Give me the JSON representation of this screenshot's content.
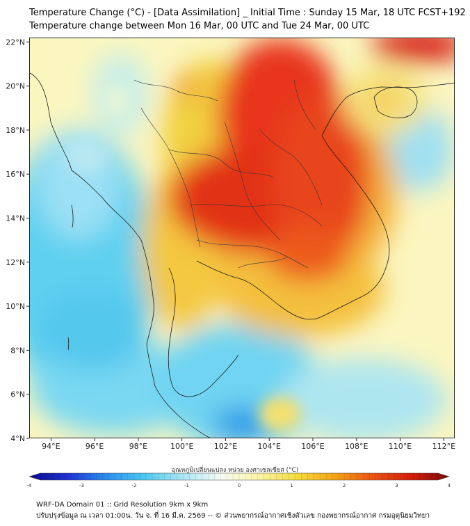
{
  "header": {
    "title_line1": "Temperature Change (°C) - [Data Assimilation] _ Initial Time : Sunday 15 Mar, 18 UTC FCST+192",
    "title_line2": "Temperature change between Mon 16 Mar, 00 UTC and Tue 24 Mar, 00 UTC"
  },
  "map": {
    "lon_range": [
      93,
      112.5
    ],
    "lat_range": [
      4,
      22.2
    ],
    "lon_ticks": [
      "94°E",
      "96°E",
      "98°E",
      "100°E",
      "102°E",
      "104°E",
      "106°E",
      "108°E",
      "110°E",
      "112°E"
    ],
    "lat_ticks": [
      "4°N",
      "6°N",
      "8°N",
      "10°N",
      "12°N",
      "14°N",
      "16°N",
      "18°N",
      "20°N",
      "22°N"
    ],
    "lon_tick_values": [
      94,
      96,
      98,
      100,
      102,
      104,
      106,
      108,
      110,
      112
    ],
    "lat_tick_values": [
      4,
      6,
      8,
      10,
      12,
      14,
      16,
      18,
      20,
      22
    ]
  },
  "colorbar": {
    "title": "อุณหภูมิเปลี่ยนแปลง หน่วย องศาเซลเซียส (°C)",
    "min": -4,
    "max": 4,
    "tick_labels": [
      "-4",
      "-3",
      "-2",
      "-1",
      "0",
      "1",
      "2",
      "3",
      "4"
    ],
    "tick_values": [
      -4,
      -3,
      -2,
      -1,
      0,
      1,
      2,
      3,
      4
    ],
    "colors": [
      "#0a0a8c",
      "#1e32d2",
      "#2a8cf0",
      "#4cc8f0",
      "#a8e4f4",
      "#f4fcf4",
      "#fcf4a8",
      "#f4dc3c",
      "#f4a414",
      "#ec5414",
      "#d21e0a",
      "#7a0a0a"
    ]
  },
  "footer": {
    "line1": "WRF-DA Domain 01 :: Grid Resolution 9km x 9km",
    "line2": "ปรับปรุงข้อมูล ณ เวลา 01:00น. วัน จ. ที่ 16 มี.ค. 2569 -- © ส่วนพยากรณ์อากาศเชิงตัวเลข กองพยากรณ์อากาศ กรมอุตุนิยมวิทยา"
  }
}
